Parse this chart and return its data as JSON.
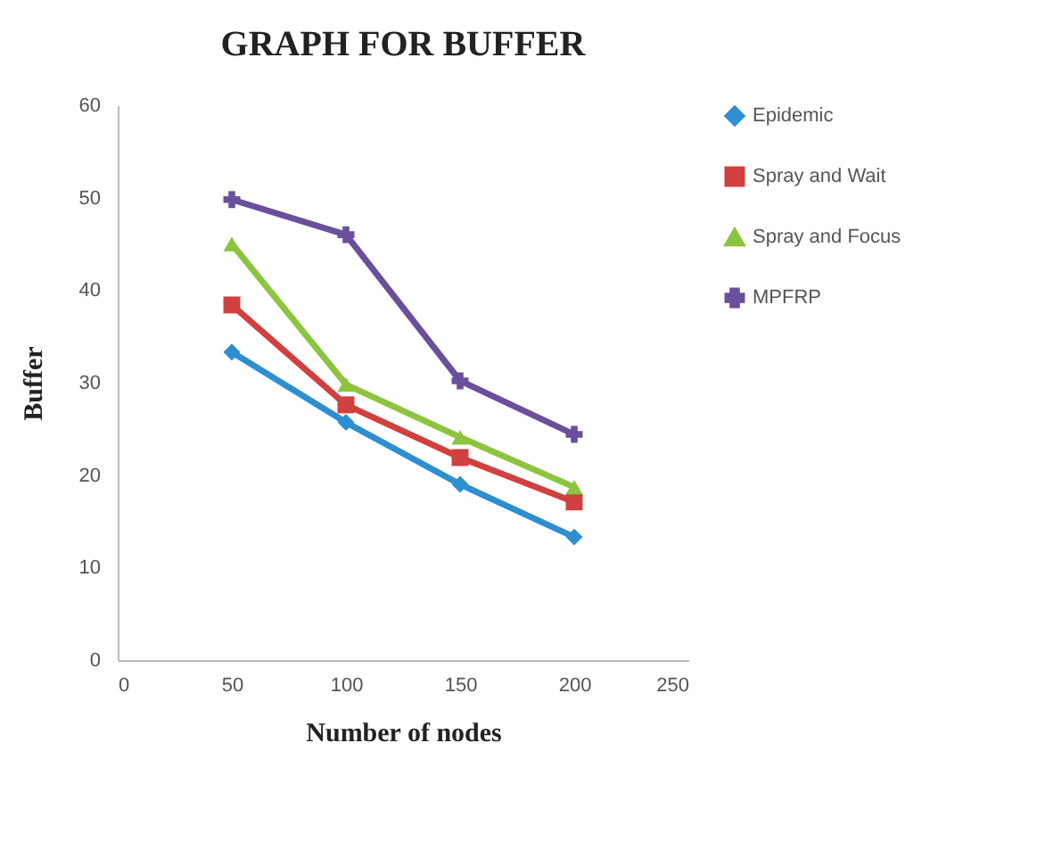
{
  "chart_data": {
    "type": "line",
    "title": "GRAPH FOR BUFFER",
    "xlabel": "Number of nodes",
    "ylabel": "Buffer",
    "x": [
      50,
      100,
      150,
      200
    ],
    "series": [
      {
        "name": "Epidemic",
        "color": "#2e8fd0",
        "marker": "diamond",
        "values": [
          33.3,
          25.7,
          19,
          13.3
        ]
      },
      {
        "name": "Spray and Wait",
        "color": "#d0403f",
        "marker": "square",
        "values": [
          38.4,
          27.6,
          21.9,
          17.1
        ]
      },
      {
        "name": "Spray and Focus",
        "color": "#8cc43f",
        "marker": "triangle",
        "values": [
          45,
          29.8,
          24.1,
          18.7
        ]
      },
      {
        "name": "MPFRP",
        "color": "#6a4f9c",
        "marker": "cross",
        "values": [
          49.8,
          46,
          30.2,
          24.4
        ]
      }
    ],
    "xlim": [
      0,
      250
    ],
    "xticks": [
      0,
      50,
      100,
      150,
      200,
      250
    ],
    "ylim": [
      0,
      60
    ],
    "yticks": [
      0,
      10,
      20,
      30,
      40,
      50,
      60
    ],
    "grid": false,
    "legend": "right",
    "line_style": "solid"
  }
}
